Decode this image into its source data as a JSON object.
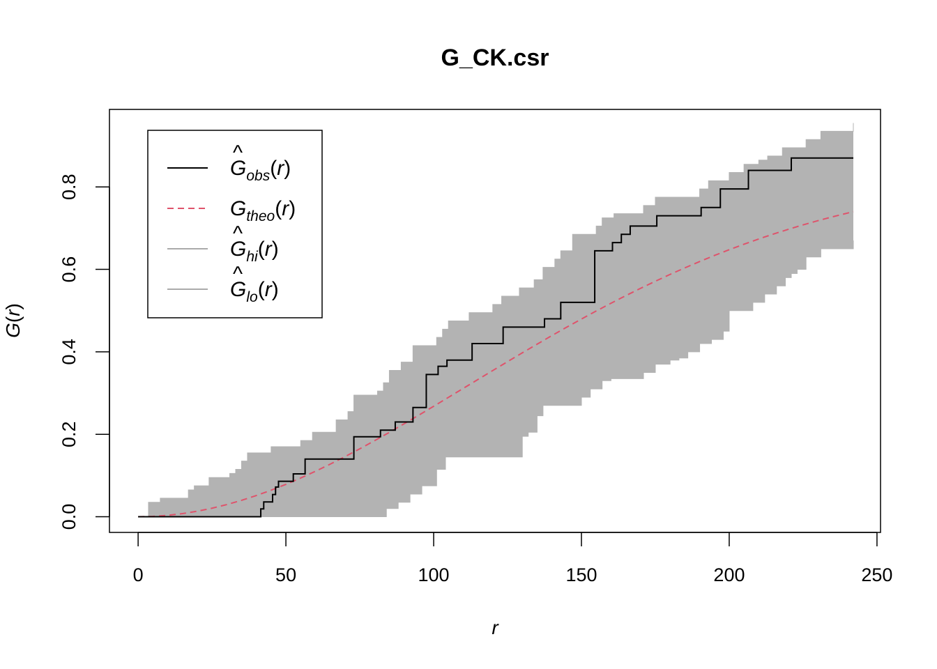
{
  "chart_data": {
    "type": "line",
    "title": "G_CK.csr",
    "xlabel": "r",
    "ylabel": "G(r)",
    "xlim": [
      -9.7,
      251.2
    ],
    "ylim": [
      -0.038,
      0.988
    ],
    "xticks": [
      0,
      50,
      100,
      150,
      200,
      250
    ],
    "xtick_labels": [
      "0",
      "50",
      "100",
      "150",
      "200",
      "250"
    ],
    "yticks": [
      0.0,
      0.2,
      0.4,
      0.6,
      0.8
    ],
    "ytick_labels": [
      "0.0",
      "0.2",
      "0.4",
      "0.6",
      "0.8"
    ],
    "grid": false,
    "legend_position": "top-left",
    "colors": {
      "obs": "#000000",
      "theo": "#DF536B",
      "band": "#B3B3B3",
      "band_line": "#AAAAAA"
    },
    "legend": [
      {
        "base": "G",
        "hat": true,
        "sub": "obs",
        "tail": "(r)",
        "style": "solid",
        "color": "#000000"
      },
      {
        "base": "G",
        "hat": false,
        "sub": "theo",
        "tail": "(r)",
        "style": "dashed",
        "color": "#DF536B"
      },
      {
        "base": "G",
        "hat": true,
        "sub": "hi",
        "tail": "(r)",
        "style": "solid",
        "color": "#AAAAAA"
      },
      {
        "base": "G",
        "hat": true,
        "sub": "lo",
        "tail": "(r)",
        "style": "solid",
        "color": "#AAAAAA"
      }
    ],
    "series": [
      {
        "name": "obs",
        "type": "step",
        "x": [
          0,
          41.5,
          42.5,
          44.5,
          45.5,
          46.5,
          47.5,
          51.5,
          52.5,
          55.5,
          56.5,
          66.5,
          70.5,
          73,
          82,
          84.5,
          87,
          92,
          93,
          95.5,
          97.5,
          101.5,
          102.5,
          104.5,
          111.5,
          113,
          122,
          123.5,
          136,
          137.5,
          140.5,
          143,
          153,
          154.5,
          155.5,
          159.5,
          160.5,
          162.5,
          163.5,
          165.5,
          166.5,
          174.5,
          175.5,
          189.5,
          190.5,
          196,
          197,
          205.5,
          206.5,
          215.5,
          221,
          242
        ],
        "y": [
          0,
          0.019,
          0.036,
          0.036,
          0.054,
          0.072,
          0.086,
          0.086,
          0.104,
          0.104,
          0.14,
          0.14,
          0.14,
          0.194,
          0.21,
          0.21,
          0.23,
          0.23,
          0.265,
          0.265,
          0.345,
          0.365,
          0.365,
          0.38,
          0.38,
          0.42,
          0.42,
          0.46,
          0.46,
          0.48,
          0.48,
          0.52,
          0.52,
          0.645,
          0.645,
          0.645,
          0.665,
          0.665,
          0.685,
          0.685,
          0.705,
          0.705,
          0.73,
          0.73,
          0.75,
          0.75,
          0.795,
          0.795,
          0.84,
          0.84,
          0.87,
          0.87
        ]
      },
      {
        "name": "theo",
        "type": "line",
        "x": [
          0,
          5,
          10,
          15,
          20,
          25,
          30,
          35,
          40,
          45,
          50,
          55,
          60,
          65,
          70,
          75,
          80,
          85,
          90,
          95,
          100,
          105,
          110,
          115,
          120,
          125,
          130,
          135,
          140,
          145,
          150,
          155,
          160,
          165,
          170,
          175,
          180,
          185,
          190,
          195,
          200,
          205,
          210,
          215,
          220,
          225,
          230,
          235,
          240,
          242
        ],
        "y": [
          0,
          0.0009,
          0.0034,
          0.0076,
          0.0134,
          0.0207,
          0.0295,
          0.0398,
          0.0515,
          0.0644,
          0.0786,
          0.0939,
          0.1103,
          0.1276,
          0.1458,
          0.1648,
          0.1845,
          0.2047,
          0.2255,
          0.2466,
          0.268,
          0.2896,
          0.3113,
          0.333,
          0.3547,
          0.3762,
          0.3976,
          0.4186,
          0.4394,
          0.4597,
          0.4796,
          0.499,
          0.5179,
          0.5362,
          0.554,
          0.5712,
          0.5878,
          0.6037,
          0.619,
          0.6337,
          0.6477,
          0.6611,
          0.6738,
          0.6858,
          0.6972,
          0.708,
          0.7181,
          0.7276,
          0.7365,
          0.74
        ]
      },
      {
        "name": "hi",
        "type": "step",
        "x": [
          0,
          3.5,
          5,
          7.5,
          9,
          12,
          17,
          19,
          22,
          24,
          31,
          33,
          35,
          37,
          41,
          45,
          47,
          55,
          59,
          63,
          67,
          71,
          73,
          78,
          81,
          83,
          85,
          89,
          93,
          96,
          101,
          103,
          105,
          110,
          112,
          120,
          123,
          129,
          134,
          137,
          141,
          143,
          147,
          151,
          155,
          157,
          161,
          165,
          171,
          175,
          185,
          190,
          193,
          200,
          205,
          210,
          213,
          218,
          226,
          231,
          242
        ],
        "y": [
          0,
          0.035,
          0.035,
          0.045,
          0.045,
          0.045,
          0.065,
          0.075,
          0.075,
          0.095,
          0.105,
          0.115,
          0.135,
          0.155,
          0.155,
          0.17,
          0.17,
          0.185,
          0.205,
          0.205,
          0.235,
          0.255,
          0.295,
          0.295,
          0.305,
          0.325,
          0.355,
          0.375,
          0.415,
          0.415,
          0.435,
          0.455,
          0.475,
          0.475,
          0.495,
          0.515,
          0.535,
          0.555,
          0.575,
          0.605,
          0.625,
          0.645,
          0.685,
          0.685,
          0.705,
          0.725,
          0.735,
          0.735,
          0.755,
          0.775,
          0.775,
          0.795,
          0.815,
          0.835,
          0.855,
          0.865,
          0.875,
          0.895,
          0.915,
          0.935,
          0.955
        ]
      },
      {
        "name": "lo",
        "type": "step",
        "x": [
          0,
          82,
          84,
          88,
          92,
          96,
          101,
          104,
          108,
          120,
          130,
          132,
          135,
          137,
          142,
          147,
          150,
          153,
          157,
          160,
          163,
          167,
          171,
          175,
          180,
          183,
          186,
          190,
          194,
          198,
          200,
          205,
          208,
          212,
          216,
          219,
          221,
          223,
          226,
          231,
          242
        ],
        "y": [
          0,
          0,
          0.02,
          0.035,
          0.055,
          0.075,
          0.115,
          0.145,
          0.145,
          0.145,
          0.195,
          0.205,
          0.245,
          0.27,
          0.27,
          0.27,
          0.29,
          0.31,
          0.33,
          0.335,
          0.335,
          0.335,
          0.35,
          0.37,
          0.38,
          0.385,
          0.4,
          0.42,
          0.43,
          0.45,
          0.5,
          0.5,
          0.52,
          0.54,
          0.56,
          0.58,
          0.59,
          0.6,
          0.63,
          0.65,
          0.67
        ]
      }
    ]
  }
}
